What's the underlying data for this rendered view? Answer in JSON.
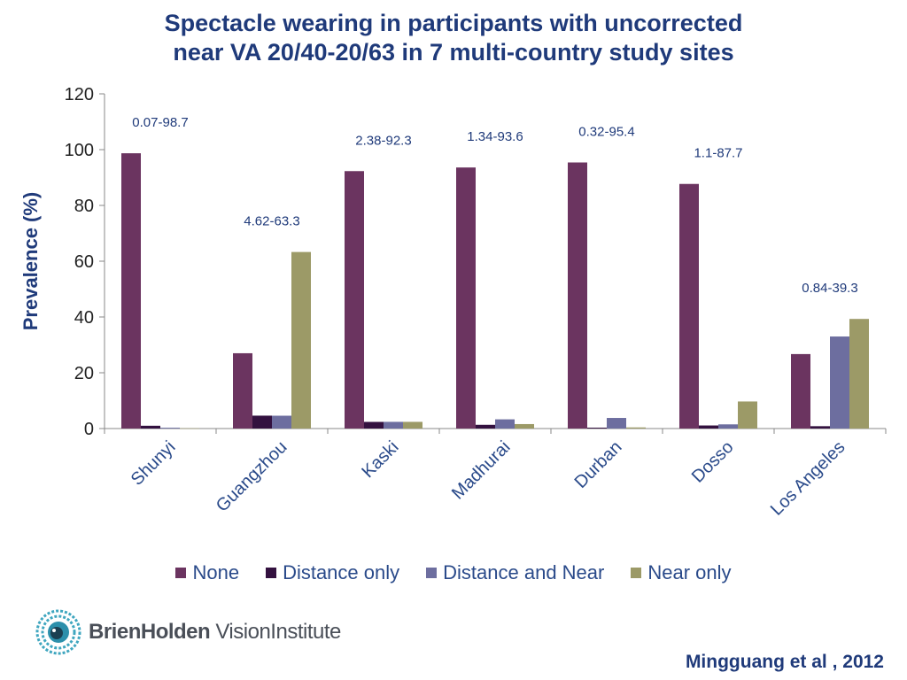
{
  "chart_data": {
    "type": "bar",
    "title_lines": [
      "Spectacle wearing in participants with uncorrected",
      "near VA 20/40-20/63 in 7 multi-country study sites"
    ],
    "ylabel": "Prevalence (%)",
    "ylim": [
      0,
      120
    ],
    "yticks": [
      "0",
      "20",
      "40",
      "60",
      "80",
      "100",
      "120"
    ],
    "categories": [
      "Shunyi",
      "Guangzhou",
      "Kaski",
      "Madhurai",
      "Durban",
      "Dosso",
      "Los Angeles"
    ],
    "series": [
      {
        "name": "None",
        "color": "#6b3460",
        "values": [
          98.7,
          27.0,
          92.3,
          93.6,
          95.4,
          87.7,
          26.7
        ]
      },
      {
        "name": "Distance only",
        "color": "#33113f",
        "values": [
          1.0,
          4.62,
          2.38,
          1.34,
          0.32,
          1.1,
          0.84
        ]
      },
      {
        "name": "Distance and Near",
        "color": "#6d6e9f",
        "values": [
          0.3,
          4.6,
          2.4,
          3.3,
          3.8,
          1.5,
          33.0
        ]
      },
      {
        "name": "Near only",
        "color": "#9c9a67",
        "values": [
          0.07,
          63.3,
          2.4,
          1.6,
          0.4,
          9.7,
          39.3
        ]
      }
    ],
    "annotations": [
      "0.07-98.7",
      "4.62-63.3",
      "2.38-92.3",
      "1.34-93.6",
      "0.32-95.4",
      "1.1-87.7",
      "0.84-39.3"
    ],
    "annotation_values": [
      98.7,
      63.3,
      92.3,
      93.6,
      95.4,
      87.7,
      39.3
    ],
    "legend_position": "bottom",
    "grid": false
  },
  "logo": {
    "part1": "Brien",
    "part2": "Holden",
    "part3": " Vision",
    "part4": "Institute"
  },
  "citation": "Mingguang et al , 2012"
}
